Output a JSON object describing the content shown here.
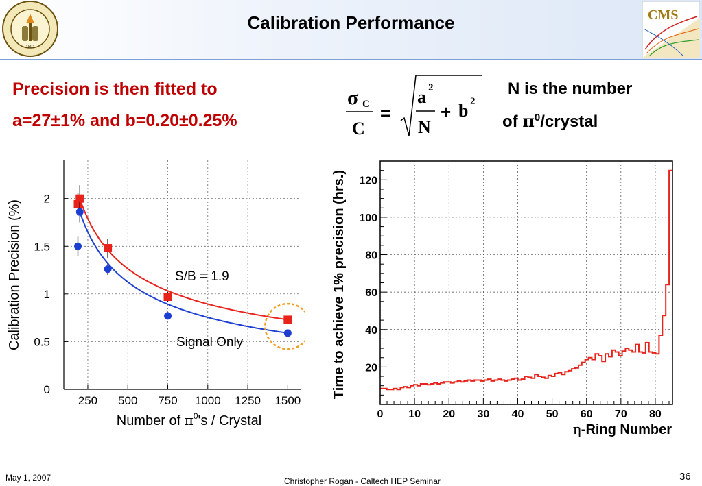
{
  "slide": {
    "title": "Calibration Performance",
    "footer_date": "May 1, 2007",
    "footer_center": "Christopher Rogan - Caltech HEP Seminar",
    "page_number": "36",
    "logo_left_text": "CALIFORNIA INSTITUTE OF TECHNOLOGY",
    "logo_left_year": "1891",
    "logo_right_text": "CMS"
  },
  "text": {
    "line1": "Precision is then fitted to",
    "line2": "a=27±1% and b=0.20±0.25%",
    "note1": "N is the number",
    "note2_prefix": "of ",
    "note2_symbol": "π",
    "note2_sup": "0",
    "note2_suffix": "/crystal"
  },
  "formula": {
    "sigma": "σ",
    "sigma_sub": "C",
    "C": "C",
    "equals": "=",
    "a": "a",
    "a_exp": "2",
    "N": "N",
    "plus": "+",
    "b": "b",
    "b_exp": "2"
  },
  "chart_data": [
    {
      "type": "scatter",
      "ylabel": "Calibration Precision (%)",
      "xlabel_prefix": "Number of ",
      "xlabel_symbol": "π",
      "xlabel_sup": "0",
      "xlabel_suffix": "'s / Crystal",
      "xlim": [
        100,
        1580
      ],
      "ylim": [
        0,
        2.4
      ],
      "xticks": [
        "250",
        "500",
        "750",
        "1000",
        "1250",
        "1500"
      ],
      "xtick_values": [
        250,
        500,
        750,
        1000,
        1250,
        1500
      ],
      "yticks": [
        "0",
        "0.5",
        "1",
        "1.5",
        "2"
      ],
      "ytick_values": [
        0,
        0.5,
        1,
        1.5,
        2
      ],
      "grid": true,
      "annotations": [
        "S/B = 1.9",
        "Signal Only"
      ],
      "series": [
        {
          "name": "S/B = 1.9",
          "color": "#e8231b",
          "marker": "square",
          "points": [
            {
              "x": 188,
              "y": 1.94,
              "err": 0.12
            },
            {
              "x": 200,
              "y": 2.0,
              "err": 0.14
            },
            {
              "x": 375,
              "y": 1.48,
              "err": 0.1
            },
            {
              "x": 750,
              "y": 0.97,
              "err": 0.05
            },
            {
              "x": 1500,
              "y": 0.73,
              "err": 0.02
            }
          ],
          "fit_range": [
            195,
            1500
          ]
        },
        {
          "name": "Signal Only",
          "color": "#1d3fd1",
          "marker": "circle",
          "points": [
            {
              "x": 188,
              "y": 1.5,
              "err": 0.1
            },
            {
              "x": 200,
              "y": 1.86,
              "err": 0.11
            },
            {
              "x": 375,
              "y": 1.26,
              "err": 0.06
            },
            {
              "x": 750,
              "y": 0.77,
              "err": 0.03
            },
            {
              "x": 1500,
              "y": 0.59,
              "err": 0.01
            }
          ],
          "fit_range": [
            195,
            1500
          ]
        }
      ],
      "highlight": {
        "x": 1500,
        "color": "#f0a020"
      }
    },
    {
      "type": "line",
      "ylabel": "Time to achieve 1% precision (hrs.)",
      "xlabel_symbol": "η",
      "xlabel_suffix": "-Ring Number",
      "xlim": [
        0,
        85
      ],
      "ylim": [
        0,
        130
      ],
      "xticks": [
        "0",
        "10",
        "20",
        "30",
        "40",
        "50",
        "60",
        "70",
        "80"
      ],
      "xtick_values": [
        0,
        10,
        20,
        30,
        40,
        50,
        60,
        70,
        80
      ],
      "yticks": [
        "20",
        "40",
        "60",
        "80",
        "100",
        "120"
      ],
      "ytick_values": [
        20,
        40,
        60,
        80,
        100,
        120
      ],
      "grid": true,
      "series": [
        {
          "name": "",
          "color": "#e8231b",
          "step": true,
          "values": [
            8.5,
            8.5,
            8.0,
            8.0,
            8.5,
            8.0,
            9.0,
            9.5,
            9.0,
            10.0,
            10.5,
            10.0,
            11.0,
            11.0,
            10.5,
            11.0,
            11.5,
            11.0,
            11.5,
            12.0,
            12.0,
            11.5,
            12.0,
            12.5,
            12.0,
            12.5,
            13.0,
            12.5,
            13.0,
            13.0,
            12.5,
            13.0,
            13.5,
            12.5,
            13.0,
            13.5,
            13.0,
            12.5,
            13.0,
            13.5,
            14.0,
            13.0,
            13.5,
            15.0,
            14.5,
            14.0,
            16.0,
            15.0,
            14.5,
            14.0,
            15.5,
            15.0,
            16.5,
            17.0,
            16.0,
            17.5,
            18.0,
            19.0,
            19.5,
            21.0,
            22.5,
            24.0,
            25.0,
            24.0,
            27.0,
            26.0,
            23.0,
            27.0,
            25.5,
            29.0,
            28.0,
            26.0,
            28.5,
            30.0,
            29.0,
            28.0,
            32.0,
            28.0,
            27.5,
            33.0,
            28.0,
            27.5,
            27.0,
            37.0,
            47.5,
            64.0,
            125.0
          ]
        }
      ]
    }
  ]
}
